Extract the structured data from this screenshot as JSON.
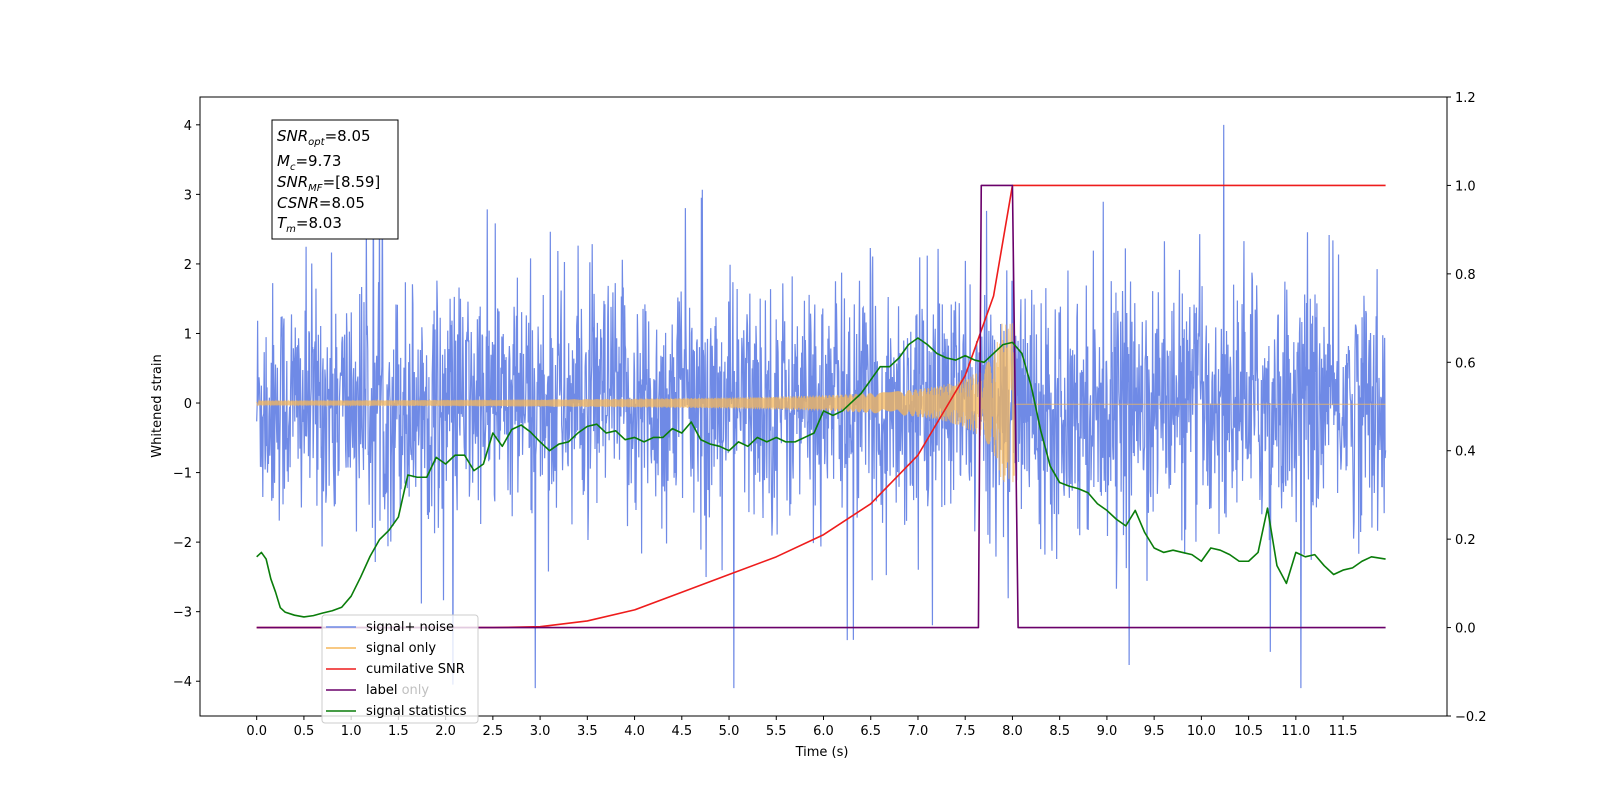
{
  "chart_data": {
    "type": "line",
    "xlabel": "Time (s)",
    "ylabel": "Whitened strain",
    "xlim": [
      -0.6,
      12.6
    ],
    "ylim": [
      -4.5,
      4.4
    ],
    "y2lim": [
      -0.2,
      1.2
    ],
    "x_ticks": [
      "0.0",
      "0.5",
      "1.0",
      "1.5",
      "2.0",
      "2.5",
      "3.0",
      "3.5",
      "4.0",
      "4.5",
      "5.0",
      "5.5",
      "6.0",
      "6.5",
      "7.0",
      "7.5",
      "8.0",
      "8.5",
      "9.0",
      "9.5",
      "10.0",
      "10.5",
      "11.0",
      "11.5"
    ],
    "y_ticks": [
      "4",
      "3",
      "2",
      "1",
      "0",
      "−1",
      "−2",
      "−3",
      "−4"
    ],
    "y2_ticks": [
      "1.2",
      "1.0",
      "0.8",
      "0.6",
      "0.4",
      "0.2",
      "0.0",
      "−0.2"
    ],
    "grid": false,
    "legend_position": "lower-left",
    "info_box": {
      "snr_opt": {
        "name": "SNR",
        "sub": "opt",
        "value": "=8.05"
      },
      "mc": {
        "name": "M",
        "sub": "c",
        "value": "=9.73"
      },
      "snr_mf": {
        "name": "SNR",
        "sub": "MF",
        "value": "=[8.59]"
      },
      "csnr": {
        "name": "CSNR",
        "sub": "",
        "value": "=8.05"
      },
      "tm": {
        "name": "T",
        "sub": "m",
        "value": "=8.03"
      }
    },
    "series": [
      {
        "name": "signal+ noise",
        "axis": "left",
        "color": "#6f8ae6",
        "style": "noise band roughly within ±1.5 with spikes to ±4",
        "range": [
          -4.1,
          4.0
        ]
      },
      {
        "name": "signal only",
        "axis": "left",
        "color": "#f5b75a",
        "style": "chirp, amplitude grows to about 1.1 near t=8.0"
      },
      {
        "name": "cumilative SNR",
        "axis": "right",
        "color": "#ee1c1c",
        "points": [
          [
            0,
            0
          ],
          [
            2.5,
            0
          ],
          [
            3.0,
            0.002
          ],
          [
            3.5,
            0.015
          ],
          [
            4.0,
            0.04
          ],
          [
            4.5,
            0.08
          ],
          [
            5.0,
            0.12
          ],
          [
            5.5,
            0.16
          ],
          [
            6.0,
            0.21
          ],
          [
            6.5,
            0.28
          ],
          [
            7.0,
            0.39
          ],
          [
            7.5,
            0.57
          ],
          [
            7.8,
            0.75
          ],
          [
            8.0,
            1.0
          ],
          [
            11.95,
            1.0
          ]
        ]
      },
      {
        "name": "label",
        "axis": "right",
        "color": "#6a006a",
        "points": [
          [
            0,
            0
          ],
          [
            7.64,
            0
          ],
          [
            7.67,
            1.0
          ],
          [
            8.0,
            1.0
          ],
          [
            8.06,
            0
          ],
          [
            11.95,
            0
          ]
        ]
      },
      {
        "name": "label only",
        "axis": "right",
        "color": "#c0c0c0",
        "points": []
      },
      {
        "name": "signal statistics",
        "axis": "right",
        "color": "#0a7d0a",
        "points": [
          [
            0,
            0.16
          ],
          [
            0.05,
            0.17
          ],
          [
            0.1,
            0.155
          ],
          [
            0.15,
            0.11
          ],
          [
            0.2,
            0.08
          ],
          [
            0.25,
            0.045
          ],
          [
            0.3,
            0.035
          ],
          [
            0.4,
            0.028
          ],
          [
            0.5,
            0.024
          ],
          [
            0.6,
            0.027
          ],
          [
            0.7,
            0.033
          ],
          [
            0.8,
            0.038
          ],
          [
            0.9,
            0.046
          ],
          [
            1.0,
            0.071
          ],
          [
            1.1,
            0.114
          ],
          [
            1.2,
            0.161
          ],
          [
            1.3,
            0.199
          ],
          [
            1.4,
            0.22
          ],
          [
            1.5,
            0.25
          ],
          [
            1.6,
            0.345
          ],
          [
            1.7,
            0.34
          ],
          [
            1.8,
            0.34
          ],
          [
            1.9,
            0.385
          ],
          [
            2.0,
            0.37
          ],
          [
            2.1,
            0.39
          ],
          [
            2.2,
            0.39
          ],
          [
            2.3,
            0.355
          ],
          [
            2.4,
            0.37
          ],
          [
            2.5,
            0.44
          ],
          [
            2.6,
            0.41
          ],
          [
            2.7,
            0.448
          ],
          [
            2.8,
            0.458
          ],
          [
            2.9,
            0.442
          ],
          [
            3.0,
            0.42
          ],
          [
            3.1,
            0.4
          ],
          [
            3.2,
            0.415
          ],
          [
            3.3,
            0.42
          ],
          [
            3.4,
            0.44
          ],
          [
            3.5,
            0.455
          ],
          [
            3.6,
            0.46
          ],
          [
            3.7,
            0.44
          ],
          [
            3.8,
            0.445
          ],
          [
            3.9,
            0.425
          ],
          [
            4.0,
            0.43
          ],
          [
            4.1,
            0.42
          ],
          [
            4.2,
            0.43
          ],
          [
            4.3,
            0.43
          ],
          [
            4.4,
            0.45
          ],
          [
            4.5,
            0.44
          ],
          [
            4.6,
            0.465
          ],
          [
            4.7,
            0.425
          ],
          [
            4.8,
            0.415
          ],
          [
            4.9,
            0.41
          ],
          [
            5.0,
            0.4
          ],
          [
            5.1,
            0.42
          ],
          [
            5.2,
            0.41
          ],
          [
            5.3,
            0.43
          ],
          [
            5.4,
            0.42
          ],
          [
            5.5,
            0.43
          ],
          [
            5.6,
            0.42
          ],
          [
            5.7,
            0.42
          ],
          [
            5.8,
            0.43
          ],
          [
            5.9,
            0.44
          ],
          [
            6.0,
            0.49
          ],
          [
            6.1,
            0.48
          ],
          [
            6.2,
            0.49
          ],
          [
            6.3,
            0.51
          ],
          [
            6.4,
            0.53
          ],
          [
            6.5,
            0.56
          ],
          [
            6.6,
            0.59
          ],
          [
            6.7,
            0.59
          ],
          [
            6.8,
            0.61
          ],
          [
            6.9,
            0.64
          ],
          [
            7.0,
            0.655
          ],
          [
            7.1,
            0.64
          ],
          [
            7.2,
            0.62
          ],
          [
            7.3,
            0.61
          ],
          [
            7.4,
            0.605
          ],
          [
            7.5,
            0.615
          ],
          [
            7.6,
            0.605
          ],
          [
            7.7,
            0.6
          ],
          [
            7.8,
            0.62
          ],
          [
            7.9,
            0.64
          ],
          [
            8.0,
            0.645
          ],
          [
            8.1,
            0.62
          ],
          [
            8.2,
            0.545
          ],
          [
            8.3,
            0.445
          ],
          [
            8.4,
            0.365
          ],
          [
            8.5,
            0.328
          ],
          [
            8.6,
            0.32
          ],
          [
            8.7,
            0.314
          ],
          [
            8.8,
            0.305
          ],
          [
            8.9,
            0.28
          ],
          [
            9.0,
            0.265
          ],
          [
            9.1,
            0.245
          ],
          [
            9.2,
            0.23
          ],
          [
            9.3,
            0.265
          ],
          [
            9.4,
            0.215
          ],
          [
            9.5,
            0.18
          ],
          [
            9.6,
            0.17
          ],
          [
            9.7,
            0.175
          ],
          [
            9.8,
            0.17
          ],
          [
            9.9,
            0.165
          ],
          [
            10.0,
            0.15
          ],
          [
            10.1,
            0.18
          ],
          [
            10.2,
            0.175
          ],
          [
            10.3,
            0.165
          ],
          [
            10.4,
            0.15
          ],
          [
            10.5,
            0.15
          ],
          [
            10.6,
            0.17
          ],
          [
            10.7,
            0.27
          ],
          [
            10.8,
            0.14
          ],
          [
            10.9,
            0.1
          ],
          [
            11.0,
            0.17
          ],
          [
            11.1,
            0.16
          ],
          [
            11.2,
            0.165
          ],
          [
            11.3,
            0.14
          ],
          [
            11.4,
            0.12
          ],
          [
            11.5,
            0.13
          ],
          [
            11.6,
            0.135
          ],
          [
            11.7,
            0.15
          ],
          [
            11.8,
            0.16
          ],
          [
            11.95,
            0.155
          ]
        ]
      }
    ]
  }
}
